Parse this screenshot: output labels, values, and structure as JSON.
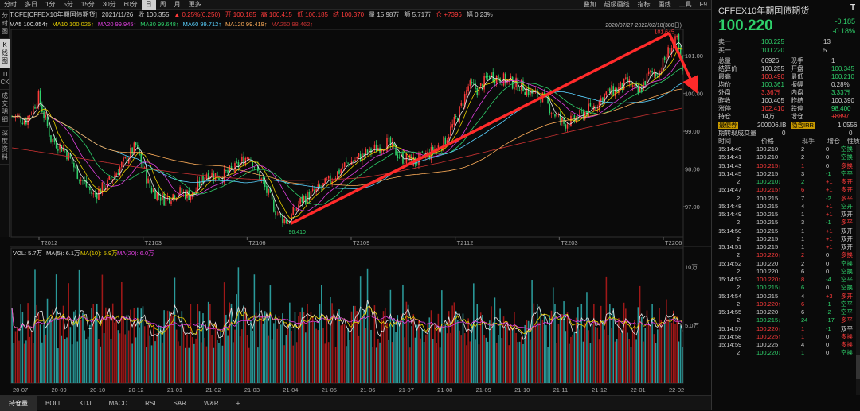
{
  "topbar": {
    "left": [
      "分时",
      "多日",
      "1分",
      "5分",
      "15分",
      "30分",
      "60分",
      "日",
      "周",
      "月",
      "更多"
    ],
    "active": "日",
    "right": [
      "叠加",
      "超级画线",
      "指标",
      "画线",
      "工具",
      "F9"
    ]
  },
  "left_tabs": [
    "分时图",
    "K线图",
    "TICK",
    "成交明细",
    "深度资料"
  ],
  "left_active": "K线图",
  "info": {
    "symbol": "T.CFE[CFFEX10年期国债期货]",
    "date": "2021/11/26",
    "close": "收 100.355",
    "chg": "▲ 0.25%(0.250)",
    "open": "开 100.185",
    "high": "高 100.415",
    "low": "低 100.185",
    "settle": "结 100.370",
    "vol": "量 15.98万",
    "amount": "额 5.71万",
    "oi_chg": "仓 +7396",
    "amp": "幅 0.23%"
  },
  "ma": {
    "ma5": "MA5 100.054↑",
    "ma10": "MA10 100.025↑",
    "ma20": "MA20 99.945↑",
    "ma30": "MA30 99.648↑",
    "ma60": "MA60 99.712↑",
    "ma120": "MA120 99.419↑",
    "ma250": "MA250 98.462↑"
  },
  "chart_data": {
    "type": "candlestick",
    "range_label": "2020/07/27-2022/02/18(380日)",
    "y_ticks": [
      "101.00",
      "100.00",
      "99.00",
      "98.00",
      "97.00"
    ],
    "x_ticks": [
      "T2012",
      "T2103",
      "T2106",
      "T2109",
      "T2112",
      "T2203",
      "T2206"
    ],
    "high_label": "101.645",
    "low_label": "96.410",
    "vol_label": "VOL: 5.7万",
    "vol_ma5": "MA(5): 6.1万",
    "vol_ma10": "MA(10): 5.9万",
    "vol_ma20": "MA(20): 6.0万",
    "vol_ticks": [
      "10万",
      "5.0万"
    ],
    "date_ticks": [
      "20-07",
      "20-09",
      "20-10",
      "20-12",
      "21-01",
      "21-02",
      "21-03",
      "21-04",
      "21-05",
      "21-06",
      "21-07",
      "21-08",
      "21-09",
      "21-10",
      "21-11",
      "21-12",
      "22-01",
      "22-02"
    ],
    "close_path": [
      [
        0,
        99.4
      ],
      [
        8,
        99.3
      ],
      [
        15,
        99.9
      ],
      [
        22,
        98.8
      ],
      [
        30,
        98.5
      ],
      [
        38,
        97.8
      ],
      [
        46,
        97.3
      ],
      [
        54,
        97.6
      ],
      [
        62,
        98.1
      ],
      [
        70,
        98.6
      ],
      [
        78,
        97.5
      ],
      [
        86,
        97.2
      ],
      [
        94,
        97.4
      ],
      [
        102,
        97.3
      ],
      [
        110,
        97.9
      ],
      [
        118,
        97.8
      ],
      [
        126,
        98.0
      ],
      [
        134,
        98.4
      ],
      [
        142,
        97.6
      ],
      [
        150,
        96.8
      ],
      [
        156,
        96.6
      ],
      [
        164,
        97.2
      ],
      [
        172,
        97.4
      ],
      [
        180,
        97.7
      ],
      [
        188,
        98.1
      ],
      [
        196,
        98.3
      ],
      [
        204,
        98.5
      ],
      [
        212,
        98.7
      ],
      [
        220,
        98.3
      ],
      [
        228,
        98.2
      ],
      [
        236,
        98.4
      ],
      [
        244,
        98.7
      ],
      [
        252,
        99.4
      ],
      [
        258,
        100.2
      ],
      [
        264,
        100.1
      ],
      [
        270,
        100.5
      ],
      [
        276,
        100.4
      ],
      [
        282,
        100.3
      ],
      [
        288,
        100.2
      ],
      [
        294,
        100.0
      ],
      [
        300,
        99.9
      ],
      [
        306,
        99.5
      ],
      [
        312,
        99.2
      ],
      [
        318,
        99.3
      ],
      [
        324,
        99.5
      ],
      [
        330,
        99.7
      ],
      [
        336,
        100.0
      ],
      [
        342,
        100.1
      ],
      [
        348,
        100.3
      ],
      [
        354,
        100.0
      ],
      [
        360,
        100.5
      ],
      [
        366,
        100.6
      ],
      [
        372,
        101.2
      ],
      [
        376,
        101.4
      ],
      [
        380,
        100.3
      ]
    ]
  },
  "bottom_tabs": [
    "持仓量",
    "BOLL",
    "KDJ",
    "MACD",
    "RSI",
    "SAR",
    "W&R",
    "+"
  ],
  "right": {
    "title": "CFFEX10年期国债期货",
    "price": "100.220",
    "chg": "-0.185",
    "pct": "-0.18%",
    "ask": {
      "label": "卖一",
      "price": "100.225",
      "qty": "13"
    },
    "bid": {
      "label": "买一",
      "price": "100.220",
      "qty": "5"
    },
    "stats": [
      [
        [
          "总量",
          "66926",
          "wht"
        ],
        [
          "现手",
          "1",
          "wht"
        ]
      ],
      [
        [
          "结算价",
          "100.255",
          "wht"
        ],
        [
          "开盘",
          "100.345",
          "green"
        ]
      ],
      [
        [
          "最高",
          "100.490",
          "red"
        ],
        [
          "最低",
          "100.210",
          "green"
        ]
      ],
      [
        [
          "均价",
          "100.361",
          "green"
        ],
        [
          "振幅",
          "0.28%",
          "wht"
        ]
      ],
      [
        [
          "外盘",
          "3.36万",
          "red"
        ],
        [
          "内盘",
          "3.33万",
          "green"
        ]
      ],
      [
        [
          "昨收",
          "100.405",
          "wht"
        ],
        [
          "昨结",
          "100.390",
          "wht"
        ]
      ],
      [
        [
          "涨停",
          "102.410",
          "red"
        ],
        [
          "跌停",
          "98.400",
          "green"
        ]
      ],
      [
        [
          "持仓",
          "14万",
          "wht"
        ],
        [
          "增仓",
          "+8897",
          "red"
        ]
      ]
    ],
    "ctd": {
      "l1": "最便券",
      "v1": "200006.IB",
      "l2": "隐含IRR",
      "v2": "1.0556",
      "l3": "期转现成交量",
      "v3": "0",
      "v4": "0"
    },
    "ticks_header": [
      "时间",
      "价格",
      "现手",
      "增仓",
      "性质"
    ],
    "ticks": [
      [
        "15:14:40",
        "100.210",
        "",
        "2",
        "0",
        "空换"
      ],
      [
        "15:14:41",
        "100.210",
        "",
        "2",
        "0",
        "空换"
      ],
      [
        "15:14:43",
        "100.215",
        "↑",
        "1",
        "0",
        "多换"
      ],
      [
        "15:14:45",
        "100.215",
        "",
        "3",
        "-1",
        "空平"
      ],
      [
        "2",
        "100.210",
        "↓",
        "2",
        "+1",
        "多开"
      ],
      [
        "15:14:47",
        "100.215",
        "↑",
        "6",
        "+1",
        "多开"
      ],
      [
        "2",
        "100.215",
        "",
        "7",
        "-2",
        "多平"
      ],
      [
        "15:14:48",
        "100.215",
        "",
        "4",
        "+1",
        "空开"
      ],
      [
        "15:14:49",
        "100.215",
        "",
        "1",
        "+1",
        "双开"
      ],
      [
        "2",
        "100.215",
        "",
        "3",
        "-1",
        "多平"
      ],
      [
        "15:14:50",
        "100.215",
        "",
        "1",
        "+1",
        "双开"
      ],
      [
        "2",
        "100.215",
        "",
        "1",
        "+1",
        "双开"
      ],
      [
        "15:14:51",
        "100.215",
        "",
        "1",
        "+1",
        "双开"
      ],
      [
        "2",
        "100.220",
        "↑",
        "2",
        "0",
        "多换"
      ],
      [
        "15:14:52",
        "100.220",
        "",
        "2",
        "0",
        "空换"
      ],
      [
        "2",
        "100.220",
        "",
        "6",
        "0",
        "空换"
      ],
      [
        "15:14:53",
        "100.220",
        "↑",
        "8",
        "-4",
        "空平"
      ],
      [
        "2",
        "100.215",
        "↓",
        "6",
        "0",
        "空换"
      ],
      [
        "15:14:54",
        "100.215",
        "",
        "4",
        "+3",
        "多开"
      ],
      [
        "2",
        "100.220",
        "↑",
        "6",
        "-1",
        "空平"
      ],
      [
        "15:14:55",
        "100.220",
        "",
        "6",
        "-2",
        "空平"
      ],
      [
        "2",
        "100.215",
        "↓",
        "24",
        "-17",
        "多平"
      ],
      [
        "15:14:57",
        "100.220",
        "↑",
        "1",
        "-1",
        "双平"
      ],
      [
        "15:14:58",
        "100.225",
        "↑",
        "1",
        "0",
        "多换"
      ],
      [
        "15:14:59",
        "100.225",
        "",
        "4",
        "0",
        "多换"
      ],
      [
        "2",
        "100.220",
        "↓",
        "1",
        "0",
        "空换"
      ]
    ]
  },
  "colors": {
    "up": "#ff3b3b",
    "down": "#2fd16b",
    "ma5": "#e8e8e8",
    "ma10": "#e8d000",
    "ma20": "#e040e0",
    "ma30": "#2fd16b",
    "ma60": "#5ad2ff",
    "ma120": "#ffae5a",
    "ma250": "#c83232",
    "arrow": "#ff2a2a"
  }
}
